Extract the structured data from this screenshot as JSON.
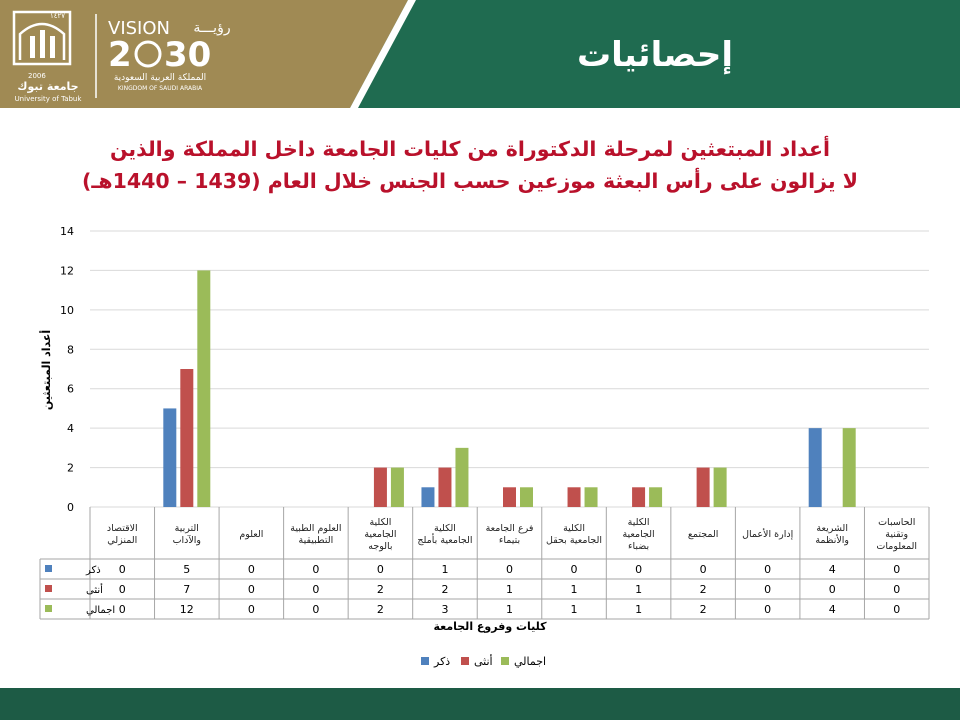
{
  "header": {
    "slide_title": "إحصائيات",
    "university_ar": "جامعة تبوك",
    "university_en": "University of Tabuk",
    "university_year": "2006",
    "university_hijri": "١٤٢٧",
    "vision_word": "VISION",
    "vision_ar": "رؤيـــة",
    "vision_year_a": "2",
    "vision_year_b": "30",
    "kingdom_ar": "المملكة العربية السعودية",
    "kingdom_en": "KINGDOM OF SAUDI ARABIA"
  },
  "colors": {
    "header_green": "#1f6b50",
    "gold": "#a08a54",
    "footer": "#1d5b45",
    "title_red": "#b9112b",
    "male": "#4f81bd",
    "female": "#c0504d",
    "total": "#9bbb59"
  },
  "chart_data": {
    "type": "bar",
    "title": [
      "أعداد المبتعثين لمرحلة الدكتوراة من كليات الجامعة داخل المملكة والذين",
      "لا يزالون على رأس البعثة موزعين حسب الجنس خلال العام (1439 – 1440هـ)"
    ],
    "xlabel": "كليات وفروع الجامعة",
    "ylabel": "أعداد المبتعثين",
    "ylim": [
      0,
      14
    ],
    "yticks": [
      0,
      2,
      4,
      6,
      8,
      10,
      12,
      14
    ],
    "categories": [
      [
        "الاقتصاد",
        "المنزلي"
      ],
      [
        "التربية",
        "والآداب"
      ],
      [
        "العلوم"
      ],
      [
        "العلوم الطبية",
        "التطبيقية"
      ],
      [
        "الكلية",
        "الجامعية",
        "بالوجه"
      ],
      [
        "الكلية",
        "الجامعية بأملج"
      ],
      [
        "فرع الجامعة",
        "بتيماء"
      ],
      [
        "الكلية",
        "الجامعية بحقل"
      ],
      [
        "الكلية",
        "الجامعية",
        "بضباء"
      ],
      [
        "المجتمع"
      ],
      [
        "إدارة الأعمال"
      ],
      [
        "الشريعة",
        "والأنظمة"
      ],
      [
        "الحاسبات",
        "وتقنية",
        "المعلومات"
      ]
    ],
    "series": [
      {
        "name": "ذكر",
        "color": "#4f81bd",
        "values": [
          0,
          5,
          0,
          0,
          0,
          1,
          0,
          0,
          0,
          0,
          0,
          4,
          0
        ]
      },
      {
        "name": "أنثى",
        "color": "#c0504d",
        "values": [
          0,
          7,
          0,
          0,
          2,
          2,
          1,
          1,
          1,
          2,
          0,
          0,
          0
        ]
      },
      {
        "name": "اجمالي",
        "color": "#9bbb59",
        "values": [
          0,
          12,
          0,
          0,
          2,
          3,
          1,
          1,
          1,
          2,
          0,
          4,
          0
        ]
      }
    ],
    "grid": true,
    "legend": "bottom",
    "data_table": true
  }
}
